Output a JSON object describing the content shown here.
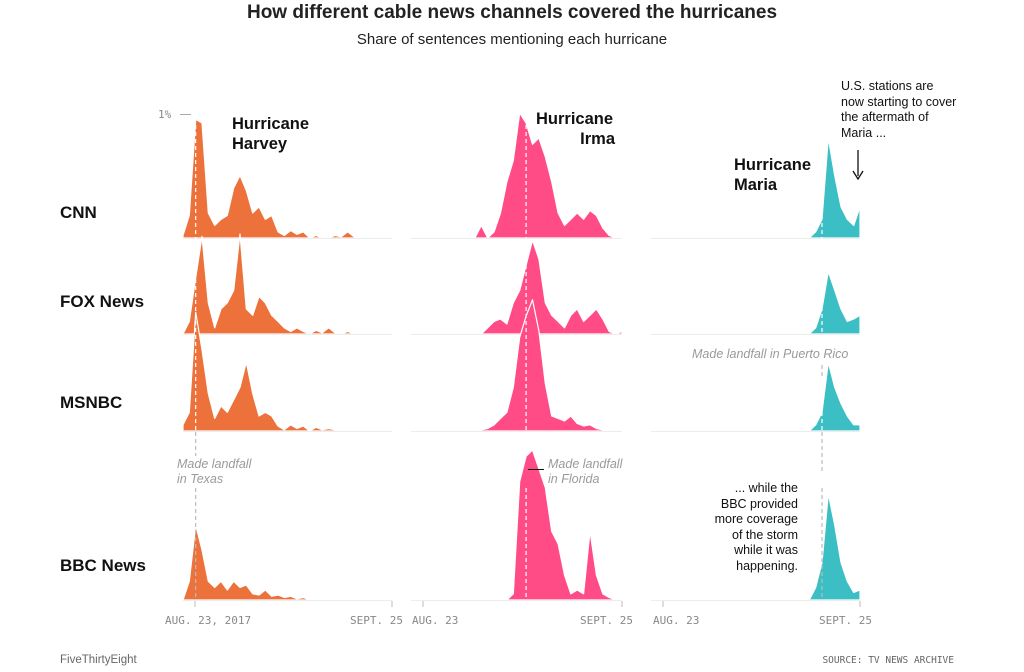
{
  "header": {
    "title": "How different cable news channels covered the hurricanes",
    "subtitle": "Share of sentences mentioning each hurricane"
  },
  "chart_data": {
    "type": "area",
    "title": "How different cable news channels covered the hurricanes",
    "subtitle": "Share of sentences mentioning each hurricane",
    "y_axis_label": "1%",
    "ylim": [
      0,
      1.15
    ],
    "x": [
      "Aug. 23",
      "Aug. 24",
      "Aug. 25",
      "Aug. 26",
      "Aug. 27",
      "Aug. 28",
      "Aug. 29",
      "Aug. 30",
      "Aug. 31",
      "Sept. 1",
      "Sept. 2",
      "Sept. 3",
      "Sept. 4",
      "Sept. 5",
      "Sept. 6",
      "Sept. 7",
      "Sept. 8",
      "Sept. 9",
      "Sept. 10",
      "Sept. 11",
      "Sept. 12",
      "Sept. 13",
      "Sept. 14",
      "Sept. 15",
      "Sept. 16",
      "Sept. 17",
      "Sept. 18",
      "Sept. 19",
      "Sept. 20",
      "Sept. 21",
      "Sept. 22",
      "Sept. 23",
      "Sept. 24",
      "Sept. 25"
    ],
    "x_tick_labels": {
      "harvey": [
        "AUG. 23, 2017",
        "SEPT. 25"
      ],
      "irma": [
        "AUG. 23",
        "SEPT. 25"
      ],
      "maria": [
        "AUG. 23",
        "SEPT. 25"
      ]
    },
    "colors": {
      "harvey": "#ec713a",
      "irma": "#ff4c86",
      "maria": "#3bbfc4"
    },
    "hurricanes": [
      {
        "name": "Hurricane Harvey",
        "key": "harvey",
        "landfall_index": 2,
        "landfall_label": "Made landfall in Texas"
      },
      {
        "name": "Hurricane Irma",
        "key": "irma",
        "landfall_index": 18,
        "landfall_label": "Made landfall in Florida"
      },
      {
        "name": "Hurricane Maria",
        "key": "maria",
        "landfall_index": 27,
        "landfall_label": "Made landfall in Puerto Rico"
      }
    ],
    "series": [
      {
        "name": "CNN",
        "harvey": [
          0.02,
          0.18,
          0.95,
          0.92,
          0.2,
          0.1,
          0.15,
          0.18,
          0.4,
          0.5,
          0.38,
          0.2,
          0.25,
          0.15,
          0.18,
          0.05,
          0.02,
          0.06,
          0.03,
          0.05,
          0,
          0.02,
          0,
          0,
          0.02,
          0.01,
          0.05,
          0.01,
          0,
          0,
          0,
          0,
          0,
          0
        ],
        "irma": [
          0,
          0,
          0,
          0,
          0,
          0,
          0,
          0,
          0,
          0,
          0,
          0.1,
          0,
          0.05,
          0.2,
          0.45,
          0.62,
          1.0,
          0.92,
          0.75,
          0.8,
          0.65,
          0.45,
          0.2,
          0.1,
          0.15,
          0.2,
          0.15,
          0.22,
          0.18,
          0.08,
          0.02,
          0,
          0
        ],
        "maria": [
          0,
          0,
          0,
          0,
          0,
          0,
          0,
          0,
          0,
          0,
          0,
          0,
          0,
          0,
          0,
          0,
          0,
          0,
          0,
          0,
          0,
          0,
          0,
          0,
          0,
          0,
          0.05,
          0.15,
          0.8,
          0.5,
          0.25,
          0.15,
          0.1,
          0.25
        ]
      },
      {
        "name": "FOX News",
        "harvey": [
          0,
          0.1,
          0.45,
          0.78,
          0.25,
          0.05,
          0.2,
          0.25,
          0.35,
          0.8,
          0.2,
          0.15,
          0.3,
          0.25,
          0.15,
          0.1,
          0.05,
          0.02,
          0.05,
          0.02,
          0,
          0.03,
          0.01,
          0.05,
          0.01,
          0,
          0.02,
          0,
          0.01,
          0,
          0,
          0,
          0,
          0
        ],
        "irma": [
          0,
          0,
          0,
          0,
          0,
          0,
          0,
          0,
          0,
          0,
          0,
          0,
          0.05,
          0.1,
          0.12,
          0.08,
          0.25,
          0.35,
          0.55,
          0.75,
          0.6,
          0.25,
          0.15,
          0.1,
          0.05,
          0.15,
          0.2,
          0.1,
          0.15,
          0.2,
          0.12,
          0.02,
          0,
          0.02
        ],
        "maria": [
          0,
          0,
          0,
          0,
          0,
          0,
          0,
          0,
          0,
          0,
          0,
          0,
          0,
          0,
          0,
          0,
          0,
          0,
          0,
          0,
          0,
          0,
          0,
          0,
          0,
          0,
          0.05,
          0.2,
          0.5,
          0.35,
          0.2,
          0.1,
          0.12,
          0.15
        ]
      },
      {
        "name": "MSNBC",
        "harvey": [
          0.05,
          0.15,
          0.95,
          0.65,
          0.3,
          0.1,
          0.2,
          0.15,
          0.25,
          0.35,
          0.55,
          0.3,
          0.12,
          0.15,
          0.12,
          0.04,
          0.01,
          0.05,
          0.02,
          0.04,
          0,
          0.03,
          0.01,
          0.02,
          0.01,
          0,
          0.01,
          0,
          0,
          0,
          0,
          0,
          0,
          0
        ],
        "irma": [
          0,
          0,
          0,
          0,
          0,
          0,
          0,
          0,
          0,
          0,
          0,
          0.01,
          0.02,
          0.05,
          0.1,
          0.15,
          0.35,
          0.75,
          0.92,
          1.05,
          0.8,
          0.38,
          0.12,
          0.1,
          0.08,
          0.12,
          0.06,
          0.04,
          0.05,
          0.02,
          0.01,
          0,
          0,
          0
        ],
        "maria": [
          0,
          0,
          0,
          0,
          0,
          0,
          0,
          0,
          0,
          0,
          0,
          0,
          0,
          0,
          0,
          0,
          0,
          0,
          0,
          0,
          0,
          0,
          0,
          0,
          0,
          0,
          0.05,
          0.15,
          0.55,
          0.35,
          0.22,
          0.12,
          0.05,
          0.05
        ]
      },
      {
        "name": "BBC News",
        "harvey": [
          0,
          0.15,
          0.6,
          0.4,
          0.15,
          0.1,
          0.15,
          0.08,
          0.15,
          0.1,
          0.12,
          0.05,
          0.04,
          0.08,
          0.03,
          0.04,
          0.02,
          0.03,
          0.01,
          0.02,
          0,
          0.01,
          0,
          0,
          0,
          0,
          0,
          0,
          0,
          0,
          0,
          0,
          0,
          0
        ],
        "irma": [
          0,
          0,
          0,
          0,
          0,
          0,
          0,
          0,
          0,
          0,
          0,
          0,
          0,
          0,
          0,
          0,
          0.05,
          0.95,
          1.15,
          1.2,
          1.05,
          0.9,
          0.55,
          0.45,
          0.2,
          0.05,
          0.08,
          0.05,
          0.55,
          0.2,
          0.05,
          0.02,
          0,
          0
        ],
        "maria": [
          0,
          0,
          0,
          0,
          0,
          0,
          0,
          0,
          0,
          0,
          0,
          0,
          0,
          0,
          0,
          0,
          0,
          0,
          0,
          0,
          0,
          0,
          0,
          0,
          0,
          0,
          0.1,
          0.3,
          0.85,
          0.6,
          0.3,
          0.15,
          0.06,
          0.08
        ]
      }
    ]
  },
  "labels": {
    "rows": [
      "CNN",
      "FOX News",
      "MSNBC",
      "BBC News"
    ],
    "harvey_line1": "Hurricane",
    "harvey_line2": "Harvey",
    "irma_line1": "Hurricane",
    "irma_line2": "Irma",
    "maria_line1": "Hurricane",
    "maria_line2": "Maria",
    "y_tick": "1%",
    "landfall_texas_1": "Made landfall",
    "landfall_texas_2": "in Texas",
    "landfall_florida_1": "Made landfall",
    "landfall_florida_2": "in Florida",
    "landfall_pr": "Made landfall in Puerto Rico",
    "note_us": [
      "U.S. stations are",
      "now starting to cover",
      "the aftermath of",
      "Maria ..."
    ],
    "note_bbc": [
      "... while the",
      "BBC provided",
      "more coverage",
      "of the storm",
      "while it was",
      "happening."
    ],
    "tick_h1": "AUG. 23, 2017",
    "tick_h2": "SEPT. 25",
    "tick_i1": "AUG. 23",
    "tick_i2": "SEPT. 25",
    "tick_m1": "AUG. 23",
    "tick_m2": "SEPT. 25"
  },
  "footer": {
    "brand": "FiveThirtyEight",
    "source": "SOURCE: TV NEWS ARCHIVE"
  }
}
